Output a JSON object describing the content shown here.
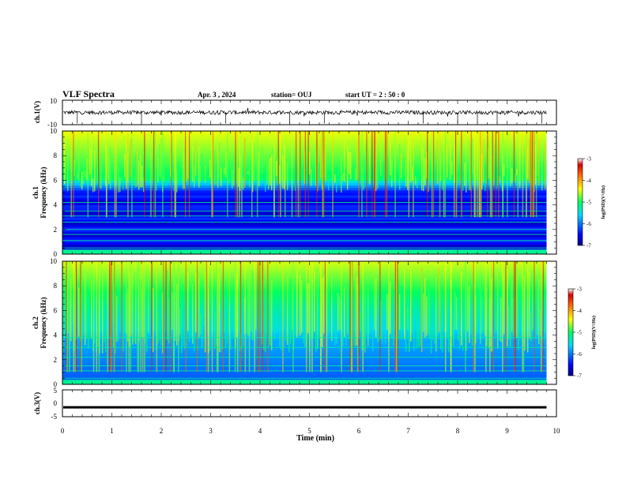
{
  "header": {
    "title": "VLF Spectra",
    "date": "Apr. 3 , 2024",
    "station": "station= OUJ",
    "start": "start UT = 2 : 50 : 0"
  },
  "chart_data": [
    {
      "type": "line",
      "name": "ch1-waveform",
      "ylabel": "ch.1(V)",
      "ylim": [
        -10,
        10
      ],
      "yticks": [
        "10",
        "-10"
      ],
      "x_range": [
        0,
        9.8
      ],
      "baseline": 0,
      "spikes": [
        0.3,
        1.6,
        3.3,
        4.6,
        5.3,
        7.3,
        8.0,
        8.4,
        8.8,
        9.7
      ]
    },
    {
      "type": "heatmap",
      "name": "ch1-spectrogram",
      "ylabel": "Frequency (kHz)",
      "channel_label": "ch.1",
      "ylim": [
        0,
        10
      ],
      "yticks": [
        "0",
        "2",
        "4",
        "6",
        "8",
        "10"
      ],
      "x_range": [
        0,
        9.8
      ],
      "colorbar": {
        "range": [
          -7,
          -3
        ],
        "ticks": [
          "-3",
          "-4",
          "-5",
          "-6",
          "-7"
        ],
        "label": "log(PSD)(V²/Hz)"
      }
    },
    {
      "type": "heatmap",
      "name": "ch2-spectrogram",
      "ylabel": "Frequency (kHz)",
      "channel_label": "ch.2",
      "ylim": [
        0,
        10
      ],
      "yticks": [
        "0",
        "2",
        "4",
        "6",
        "8",
        "10"
      ],
      "x_range": [
        0,
        9.8
      ],
      "colorbar": {
        "range": [
          -7,
          -3
        ],
        "ticks": [
          "-3",
          "-4",
          "-5",
          "-6",
          "-7"
        ],
        "label": "log(PSD)(V²/Hz)"
      }
    },
    {
      "type": "line",
      "name": "ch3-waveform",
      "ylabel": "ch.3(V)",
      "ylim": [
        -5,
        5
      ],
      "yticks": [
        "5",
        "0",
        "-5"
      ],
      "x_range": [
        0,
        9.8
      ],
      "level": -1.5
    }
  ],
  "xaxis": {
    "label": "Time (min)",
    "range": [
      0,
      10
    ],
    "ticks": [
      "0",
      "1",
      "2",
      "3",
      "4",
      "5",
      "6",
      "7",
      "8",
      "9",
      "10"
    ]
  }
}
